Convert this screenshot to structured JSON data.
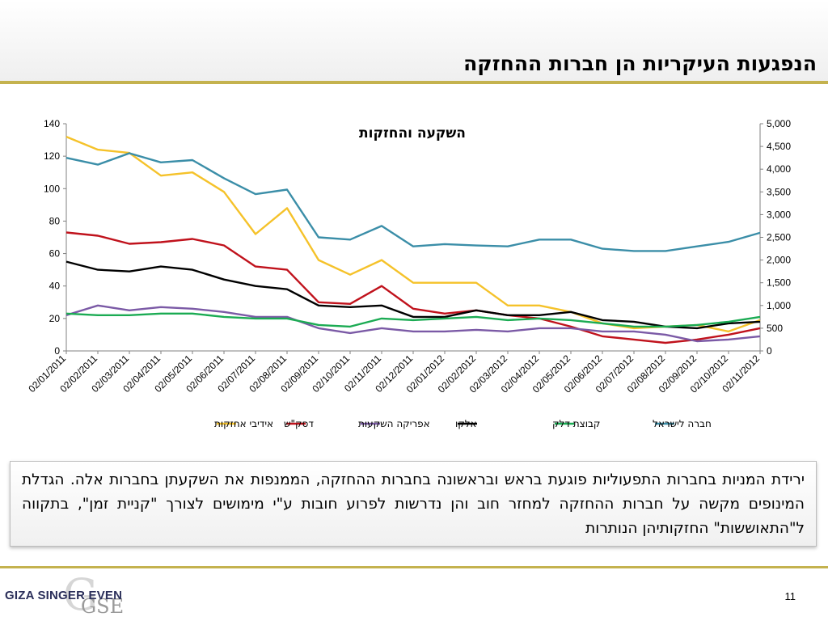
{
  "slide": {
    "title": "הנפגעות העיקריות הן חברות ההחזקה",
    "callout": "ירידת המניות בחברות התפעוליות פוגעת בראש ובראשונה בחברות ההחזקה, הממנפות את השקעתן בחברות אלה. הגדלת המינופים מקשה על חברות ההחזקה למחזר חוב והן נדרשות לפרוע חובות ע\"י מימושים לצורך \"קניית זמן\", בתקווה ל\"התאוששות\" החזקותיהן הנותרות",
    "page_number": "11",
    "logo": {
      "text": "GIZA SINGER EVEN",
      "mark": "G",
      "sub": "GSE"
    }
  },
  "colors": {
    "band": "#efefef",
    "rule": "#c4b24e",
    "logo_text": "#2b2f5a"
  },
  "chart_data": {
    "type": "line",
    "title": "השקעה והחזקות",
    "x": [
      "02/01/2011",
      "02/02/2011",
      "02/03/2011",
      "02/04/2011",
      "02/05/2011",
      "02/06/2011",
      "02/07/2011",
      "02/08/2011",
      "02/09/2011",
      "02/10/2011",
      "02/11/2011",
      "02/12/2011",
      "02/01/2012",
      "02/02/2012",
      "02/03/2012",
      "02/04/2012",
      "02/05/2012",
      "02/06/2012",
      "02/07/2012",
      "02/08/2012",
      "02/09/2012",
      "02/10/2012",
      "02/11/2012"
    ],
    "left_axis": {
      "min": 0,
      "max": 140,
      "ticks": [
        0,
        20,
        40,
        60,
        80,
        100,
        120,
        140
      ],
      "tick_labels": [
        "0",
        "20",
        "40",
        "60",
        "80",
        "100",
        "120",
        "140"
      ]
    },
    "right_axis": {
      "min": 0,
      "max": 5000,
      "ticks": [
        0,
        500,
        1000,
        1500,
        2000,
        2500,
        3000,
        3500,
        4000,
        4500,
        5000
      ],
      "tick_labels": [
        "0",
        "500",
        "1,000",
        "1,500",
        "2,000",
        "2,500",
        "3,000",
        "3,500",
        "4,000",
        "4,500",
        "5,000"
      ]
    },
    "grid": false,
    "legend_position": "bottom",
    "series": [
      {
        "name": "אידיבי אחזקות",
        "color": "#f5c22a",
        "axis": "left",
        "values": [
          132,
          124,
          122,
          108,
          110,
          98,
          72,
          88,
          56,
          47,
          56,
          42,
          42,
          42,
          28,
          28,
          24,
          17,
          14,
          15,
          16,
          12,
          19
        ]
      },
      {
        "name": "דסק\"ש",
        "color": "#c0121c",
        "axis": "left",
        "values": [
          73,
          71,
          66,
          67,
          69,
          65,
          52,
          50,
          30,
          29,
          40,
          26,
          23,
          25,
          22,
          20,
          15,
          9,
          7,
          5,
          7,
          10,
          14
        ]
      },
      {
        "name": "אפריקה השקעות",
        "color": "#7b5aa6",
        "axis": "left",
        "values": [
          22,
          28,
          25,
          27,
          26,
          24,
          21,
          21,
          14,
          11,
          14,
          12,
          12,
          13,
          12,
          14,
          14,
          12,
          12,
          10,
          6,
          7,
          9
        ]
      },
      {
        "name": "אלקו",
        "color": "#000000",
        "axis": "left",
        "values": [
          55,
          50,
          49,
          52,
          50,
          44,
          40,
          38,
          28,
          27,
          28,
          21,
          21,
          25,
          22,
          22,
          24,
          19,
          18,
          15,
          14,
          17,
          18
        ]
      },
      {
        "name": "קבוצת דלק",
        "color": "#1bab53",
        "axis": "left",
        "values": [
          23,
          22,
          22,
          23,
          23,
          21,
          20,
          20,
          16,
          15,
          20,
          19,
          20,
          21,
          19,
          20,
          19,
          17,
          15,
          15,
          16,
          18,
          21
        ]
      },
      {
        "name": "חברה לישראל",
        "color": "#3b8ea8",
        "axis": "right",
        "values": [
          4250,
          4100,
          4350,
          4150,
          4200,
          3800,
          3450,
          3550,
          2500,
          2450,
          2750,
          2300,
          2350,
          2320,
          2300,
          2450,
          2450,
          2250,
          2200,
          2200,
          2300,
          2400,
          2600
        ]
      }
    ]
  }
}
